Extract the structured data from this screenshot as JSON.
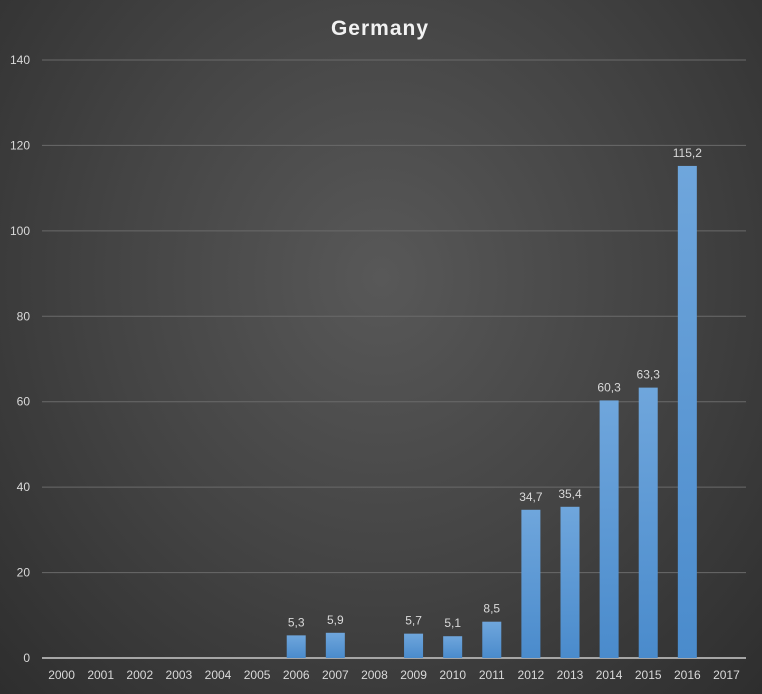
{
  "chart_data": {
    "type": "bar",
    "title": "Germany",
    "xlabel": "",
    "ylabel": "",
    "ylim": [
      0,
      140
    ],
    "yticks": [
      0,
      20,
      40,
      60,
      80,
      100,
      120,
      140
    ],
    "grid": true,
    "categories": [
      "2000",
      "2001",
      "2002",
      "2003",
      "2004",
      "2005",
      "2006",
      "2007",
      "2008",
      "2009",
      "2010",
      "2011",
      "2012",
      "2013",
      "2014",
      "2015",
      "2016",
      "2017"
    ],
    "values": [
      null,
      null,
      null,
      null,
      null,
      null,
      5.3,
      5.9,
      null,
      5.7,
      5.1,
      8.5,
      34.7,
      35.4,
      60.3,
      63.3,
      115.2,
      null
    ],
    "data_labels": [
      "",
      "",
      "",
      "",
      "",
      "",
      "5,3",
      "5,9",
      "",
      "5,7",
      "5,1",
      "8,5",
      "34,7",
      "35,4",
      "60,3",
      "63,3",
      "115,2",
      ""
    ],
    "bar_color": "#5b9bd5"
  }
}
